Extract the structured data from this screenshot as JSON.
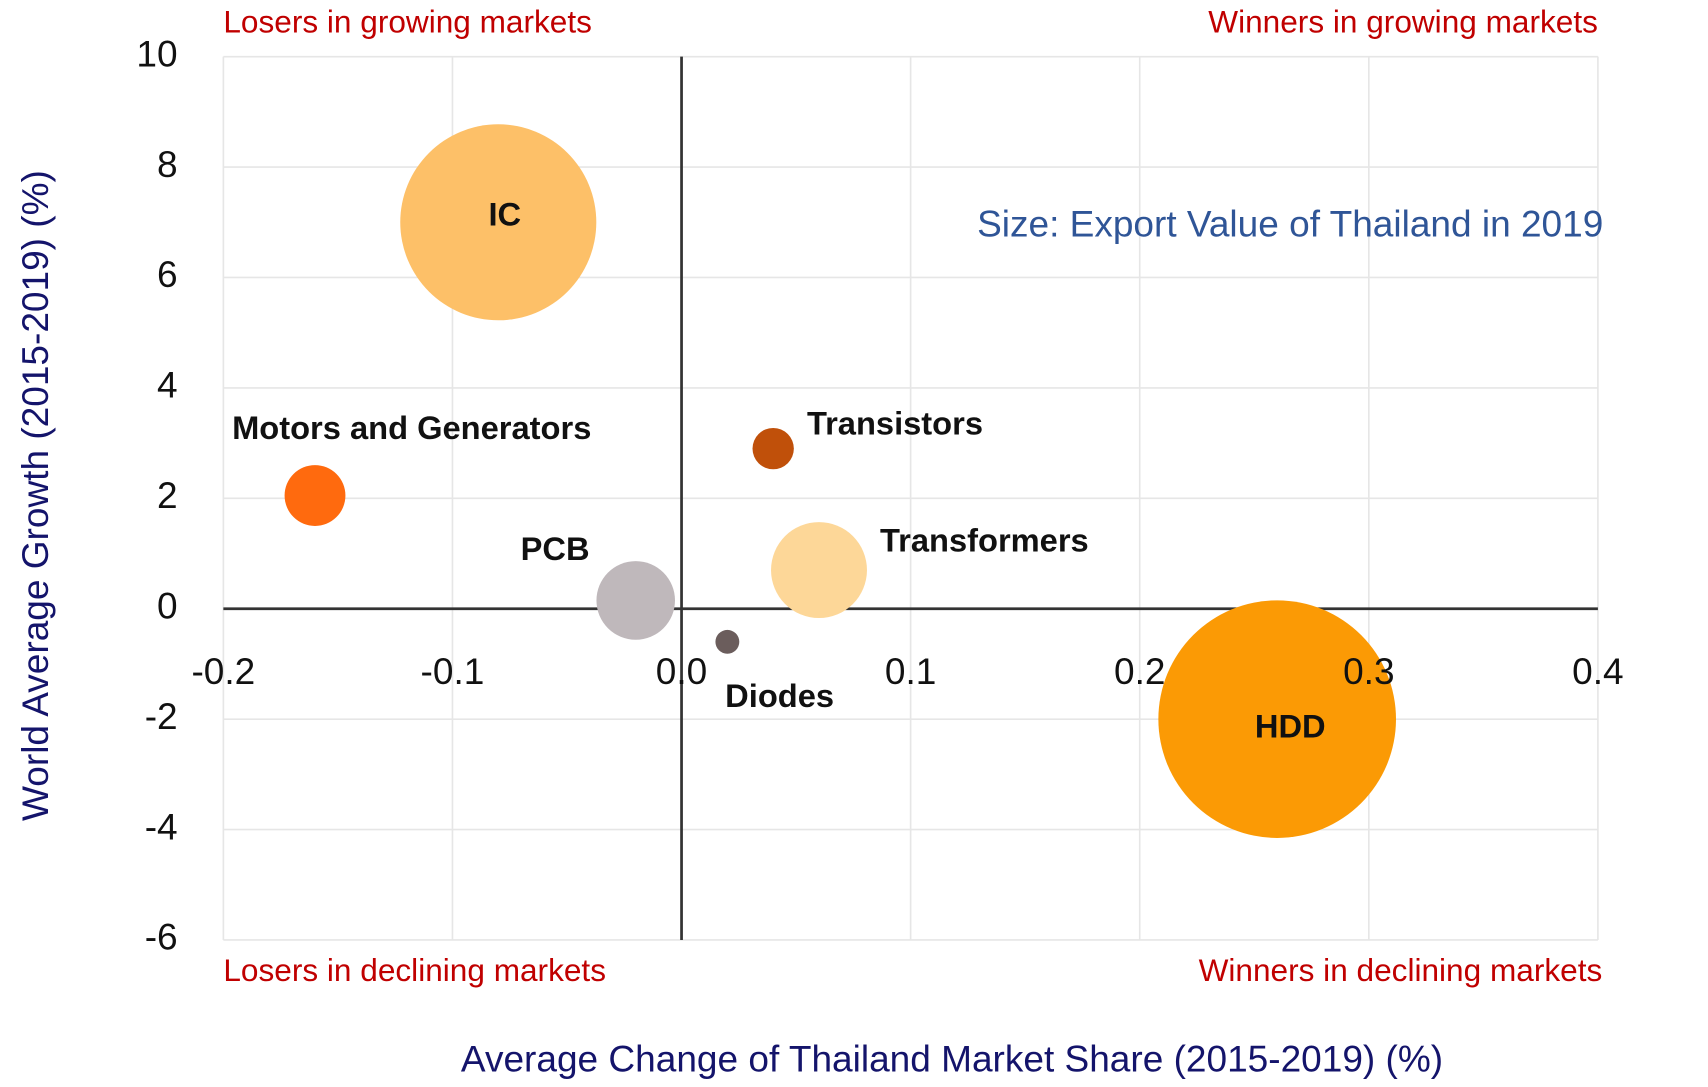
{
  "chart_data": {
    "type": "bubble",
    "xlabel": "Average Change of Thailand Market Share (2015-2019) (%)",
    "ylabel": "World Average Growth (2015-2019) (%)",
    "annotations": [
      "Losers in growing markets",
      "Winners in growing markets",
      "Losers in declining markets",
      "Winners in declining markets",
      "Size: Export Value of Thailand in 2019"
    ],
    "xlim": [
      -0.2,
      0.4
    ],
    "xticks": [
      -0.2,
      -0.1,
      {
        "value": 0,
        "label": "0.0"
      },
      0.1,
      0.2,
      0.3,
      0.4
    ],
    "ylim": [
      -6,
      10
    ],
    "yticks": [
      -6,
      -4,
      -2,
      0,
      2,
      4,
      6,
      8,
      10
    ],
    "grid": true,
    "series": [
      {
        "name": "IC",
        "color": "#fdc068",
        "x": [
          -0.08
        ],
        "values": [
          7
        ],
        "sizes": [
          81
        ]
      },
      {
        "name": "Motors and Generators",
        "color": "#ff6a0e",
        "x": [
          -0.16
        ],
        "values": [
          2.05
        ],
        "sizes": [
          7.8
        ]
      },
      {
        "name": "Transistors",
        "color": "#c0500a",
        "x": [
          0.04
        ],
        "values": [
          2.9
        ],
        "sizes": [
          3.6
        ]
      },
      {
        "name": "PCB",
        "color": "#bfb8bb",
        "x": [
          -0.02
        ],
        "values": [
          0.15
        ],
        "sizes": [
          13
        ]
      },
      {
        "name": "Transformers",
        "color": "#fdd798",
        "x": [
          0.06
        ],
        "values": [
          0.7
        ],
        "sizes": [
          19.4
        ]
      },
      {
        "name": "Diodes",
        "color": "#6b5d5c",
        "x": [
          0.02
        ],
        "values": [
          -0.6
        ],
        "sizes": [
          1.2
        ]
      },
      {
        "name": "HDD",
        "color": "#fb9a05",
        "x": [
          0.26
        ],
        "values": [
          -2
        ],
        "sizes": [
          119
        ]
      }
    ]
  }
}
